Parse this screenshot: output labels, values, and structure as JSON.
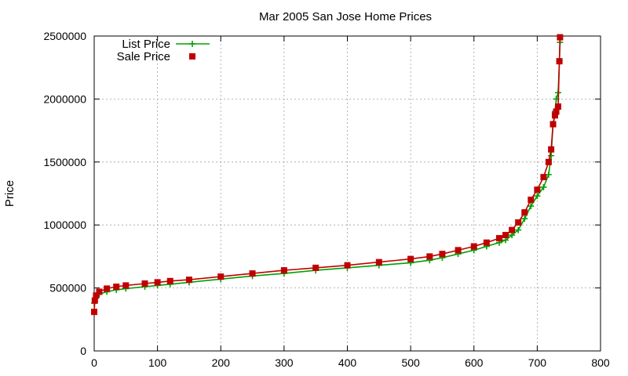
{
  "chart_data": {
    "type": "line",
    "title": "Mar 2005 San Jose Home Prices",
    "xlabel": "",
    "ylabel": "Price",
    "xlim": [
      0,
      800
    ],
    "ylim": [
      0,
      2500000
    ],
    "x_ticks": [
      "0",
      "100",
      "200",
      "300",
      "400",
      "500",
      "600",
      "700",
      "800"
    ],
    "y_ticks": [
      "0",
      "500000",
      "1000000",
      "1500000",
      "2000000",
      "2500000"
    ],
    "grid": true,
    "legend_position": "top-left",
    "count": 737,
    "series": [
      {
        "name": "List Price",
        "color": "#00a000",
        "marker": "plus",
        "x": [
          0,
          1,
          3,
          8,
          20,
          35,
          50,
          80,
          100,
          120,
          150,
          200,
          250,
          300,
          350,
          400,
          450,
          500,
          530,
          550,
          575,
          600,
          620,
          640,
          650,
          660,
          670,
          680,
          690,
          700,
          710,
          718,
          722,
          725,
          728,
          730,
          733,
          735,
          736
        ],
        "y": [
          380000,
          410000,
          430000,
          450000,
          470000,
          485000,
          495000,
          510000,
          520000,
          530000,
          545000,
          570000,
          595000,
          615000,
          640000,
          660000,
          680000,
          700000,
          720000,
          740000,
          770000,
          800000,
          830000,
          860000,
          880000,
          920000,
          960000,
          1050000,
          1150000,
          1230000,
          1300000,
          1400000,
          1550000,
          1800000,
          1900000,
          2000000,
          2050000,
          2300000,
          2450000
        ]
      },
      {
        "name": "Sale Price",
        "color": "#c00000",
        "marker": "square",
        "x": [
          0,
          1,
          3,
          8,
          20,
          35,
          50,
          80,
          100,
          120,
          150,
          200,
          250,
          300,
          350,
          400,
          450,
          500,
          530,
          550,
          575,
          600,
          620,
          640,
          650,
          660,
          670,
          680,
          690,
          700,
          710,
          718,
          722,
          725,
          728,
          730,
          733,
          735,
          736
        ],
        "y": [
          310000,
          400000,
          440000,
          470000,
          495000,
          510000,
          520000,
          535000,
          545000,
          555000,
          565000,
          590000,
          615000,
          640000,
          660000,
          680000,
          705000,
          730000,
          750000,
          770000,
          800000,
          830000,
          860000,
          895000,
          920000,
          960000,
          1020000,
          1100000,
          1200000,
          1280000,
          1380000,
          1500000,
          1600000,
          1800000,
          1870000,
          1900000,
          1940000,
          2300000,
          2490000
        ]
      }
    ]
  }
}
